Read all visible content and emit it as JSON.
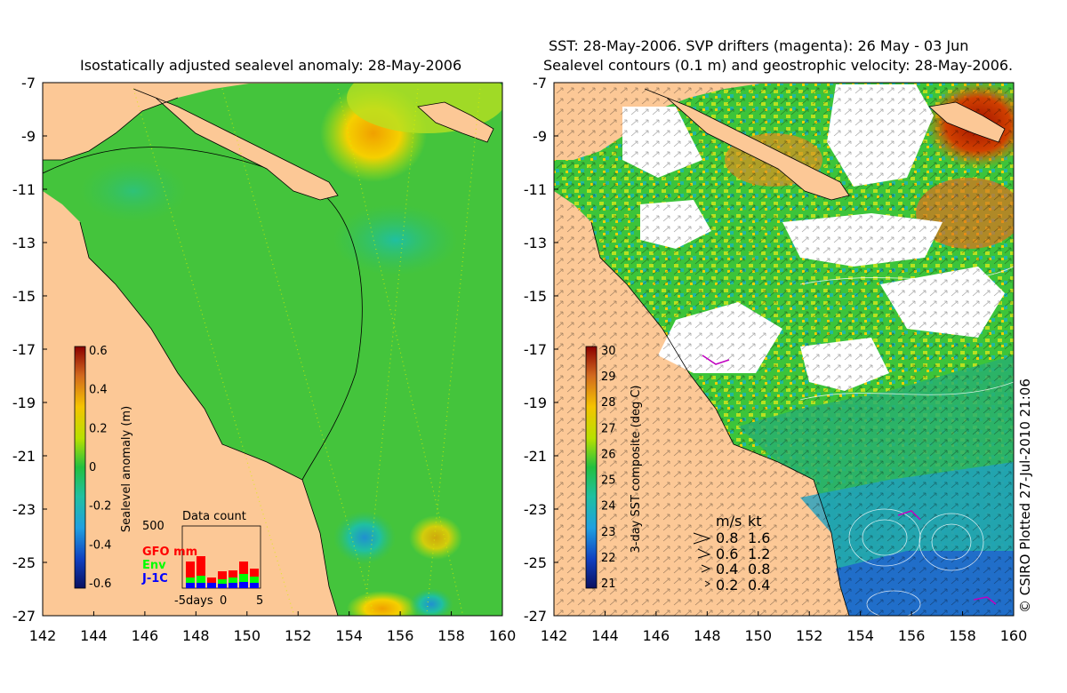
{
  "left_panel": {
    "title": "Isostatically adjusted sealevel anomaly: 28-May-2006",
    "colorbar": {
      "label": "Sealevel anomaly (m)",
      "ticks": [
        "0.6",
        "0.4",
        "0.2",
        "0",
        "-0.2",
        "-0.4",
        "-0.6"
      ]
    },
    "data_count": {
      "title": "Data count",
      "max_label": "500",
      "legend": [
        {
          "label": "GFO mm",
          "color": "#ff0000"
        },
        {
          "label": "Env",
          "color": "#00ff00"
        },
        {
          "label": "J-1C",
          "color": "#0000ff"
        }
      ],
      "xaxis": [
        "-5days",
        "0",
        "5"
      ]
    }
  },
  "right_panel": {
    "title_line1": "SST: 28-May-2006. SVP drifters (magenta): 26 May - 03 Jun",
    "title_line2": "Sealevel contours (0.1 m) and geostrophic velocity: 28-May-2006.",
    "colorbar": {
      "label": "3-day SST composite (deg C)",
      "ticks": [
        "30",
        "29",
        "28",
        "27",
        "26",
        "25",
        "24",
        "23",
        "22",
        "21"
      ]
    },
    "velocity_legend": {
      "header_ms": "m/s",
      "header_kt": "kt",
      "rows": [
        {
          "ms": "0.8",
          "kt": "1.6"
        },
        {
          "ms": "0.6",
          "kt": "1.2"
        },
        {
          "ms": "0.4",
          "kt": "0.8"
        },
        {
          "ms": "0.2",
          "kt": "0.4"
        }
      ]
    }
  },
  "axes": {
    "lat_ticks": [
      "-7",
      "-9",
      "-11",
      "-13",
      "-15",
      "-17",
      "-19",
      "-21",
      "-23",
      "-25",
      "-27"
    ],
    "lon_ticks": [
      "142",
      "144",
      "146",
      "148",
      "150",
      "152",
      "154",
      "156",
      "158",
      "160"
    ]
  },
  "copyright": "© CSIRO Plotted 27-Jul-2010 21:06",
  "colors": {
    "land": "#fcc896",
    "ocean_green": "#3fc83c",
    "cloud": "#ffffff"
  }
}
